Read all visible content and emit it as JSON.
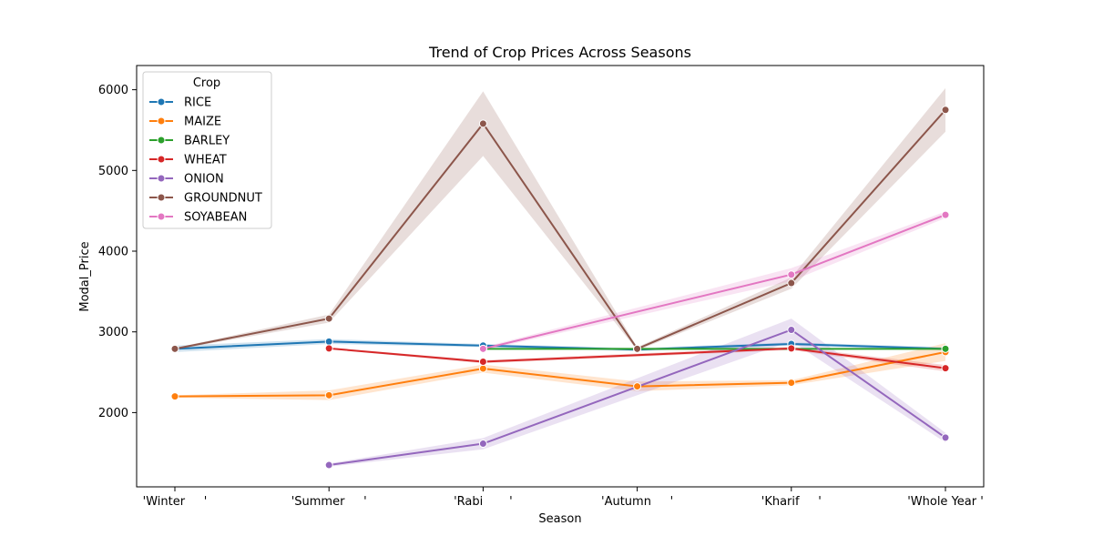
{
  "chart_data": {
    "type": "line",
    "title": "Trend of Crop Prices Across Seasons",
    "xlabel": "Season",
    "ylabel": "Modal_Price",
    "categories": [
      "'Winter     '",
      "'Summer     '",
      "'Rabi       '",
      "'Autumn     '",
      "'Kharif     '",
      "'Whole Year '"
    ],
    "yticks": [
      2000,
      3000,
      4000,
      5000,
      6000
    ],
    "ylim": [
      1080,
      6300
    ],
    "grid": false,
    "legend": {
      "title": "Crop",
      "position": "top-left"
    },
    "series": [
      {
        "name": "RICE",
        "color": "#1f77b4",
        "values": [
          2790,
          2880,
          2830,
          2780,
          2850,
          2790
        ],
        "band": [
          40,
          30,
          20,
          20,
          20,
          20
        ]
      },
      {
        "name": "MAIZE",
        "color": "#ff7f0e",
        "values": [
          2200,
          2215,
          2545,
          2325,
          2370,
          2750
        ],
        "band": [
          15,
          60,
          50,
          60,
          30,
          110
        ]
      },
      {
        "name": "BARLEY",
        "color": "#2ca02c",
        "values": [
          null,
          null,
          2790,
          2790,
          2790,
          2790
        ],
        "band": [
          0,
          0,
          10,
          10,
          10,
          10
        ]
      },
      {
        "name": "WHEAT",
        "color": "#d62728",
        "values": [
          null,
          2795,
          2630,
          null,
          2795,
          2550
        ],
        "band": [
          0,
          10,
          20,
          0,
          20,
          40
        ]
      },
      {
        "name": "ONION",
        "color": "#9467bd",
        "values": [
          null,
          1350,
          1615,
          null,
          3025,
          1690
        ],
        "band": [
          0,
          20,
          70,
          0,
          140,
          60
        ]
      },
      {
        "name": "GROUNDNUT",
        "color": "#8c564b",
        "values": [
          2790,
          3165,
          5580,
          2790,
          3605,
          5750
        ],
        "band": [
          10,
          50,
          400,
          20,
          70,
          270
        ]
      },
      {
        "name": "SOYABEAN",
        "color": "#e377c2",
        "values": [
          null,
          null,
          2790,
          null,
          3710,
          4450
        ],
        "band": [
          0,
          0,
          20,
          0,
          80,
          40
        ]
      }
    ]
  }
}
